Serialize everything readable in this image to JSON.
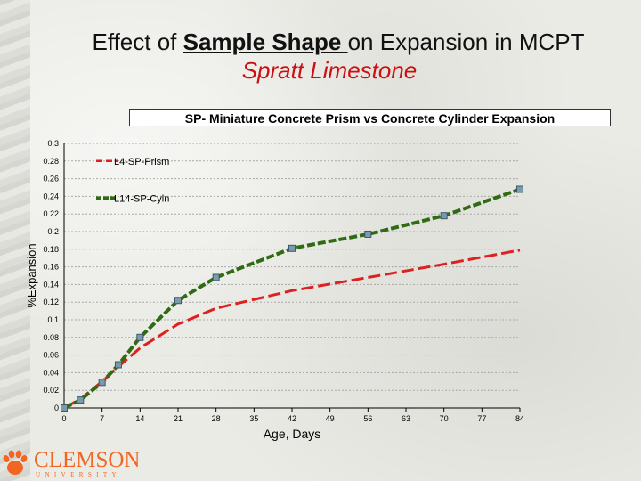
{
  "slide": {
    "title_prefix": "Effect of ",
    "title_emphasis": "Sample Shape ",
    "title_suffix": "on Expansion in MCPT",
    "subtitle": "Spratt Limestone"
  },
  "logo": {
    "text": "CLEMSON",
    "subtext": "UNIVERSITY",
    "icon": "tiger-paw-icon",
    "color": "#f26522"
  },
  "chart_data": {
    "type": "line",
    "title": "SP- Miniature Concrete Prism vs Concrete Cylinder Expansion",
    "xlabel": "Age, Days",
    "ylabel": "%Expansion",
    "xlim": [
      0,
      84
    ],
    "ylim": [
      0,
      0.3
    ],
    "x_ticks": [
      0,
      7,
      14,
      21,
      28,
      35,
      42,
      49,
      56,
      63,
      70,
      77,
      84
    ],
    "y_ticks": [
      0,
      0.02,
      0.04,
      0.06,
      0.08,
      0.1,
      0.12,
      0.14,
      0.16,
      0.18,
      0.2,
      0.22,
      0.24,
      0.26,
      0.28,
      0.3
    ],
    "grid": "horizontal",
    "legend_placement": "top-left",
    "series": [
      {
        "name": "L4-SP-Prism",
        "color": "#dd2020",
        "style": "dashed",
        "points": [
          [
            0,
            0.0
          ],
          [
            3,
            0.01
          ],
          [
            7,
            0.03
          ],
          [
            10,
            0.047
          ],
          [
            14,
            0.068
          ],
          [
            21,
            0.095
          ],
          [
            28,
            0.113
          ],
          [
            42,
            0.133
          ],
          [
            56,
            0.148
          ],
          [
            70,
            0.163
          ],
          [
            84,
            0.179
          ]
        ]
      },
      {
        "name": "L14-SP-Cyln",
        "color": "#2e6b12",
        "style": "dashed",
        "marker": "square",
        "points": [
          [
            0,
            0.0
          ],
          [
            3,
            0.009
          ],
          [
            7,
            0.029
          ],
          [
            10,
            0.049
          ],
          [
            14,
            0.08
          ],
          [
            21,
            0.122
          ],
          [
            28,
            0.148
          ],
          [
            42,
            0.181
          ],
          [
            56,
            0.197
          ],
          [
            70,
            0.218
          ],
          [
            84,
            0.248
          ]
        ]
      }
    ]
  }
}
